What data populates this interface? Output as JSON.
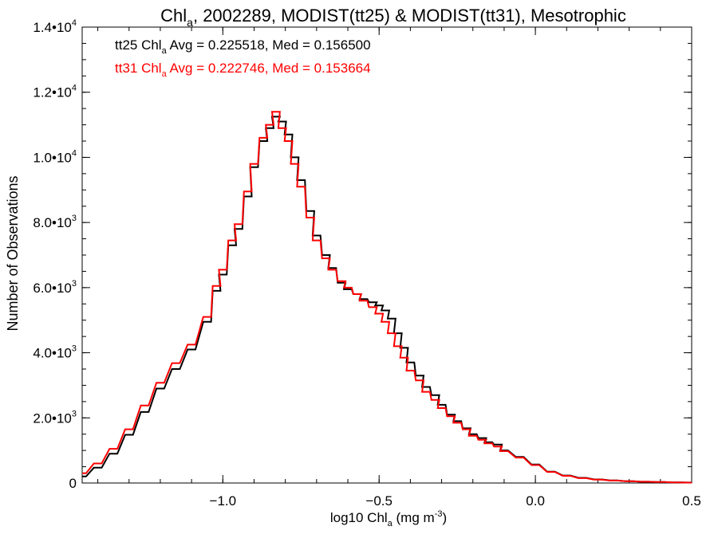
{
  "chart_data": {
    "type": "line",
    "title": {
      "pre": "Chl",
      "sub": "a",
      "post": ", 2002289, MODIST(tt25) & MODIST(tt31), Mesotrophic"
    },
    "xlabel": {
      "pre": "log10 Chl",
      "sub": "a",
      "post": " (mg m",
      "sup": "-3",
      "end": ")"
    },
    "ylabel": "Number of Observations",
    "xlim": [
      -1.45,
      0.5
    ],
    "ylim": [
      0,
      14000
    ],
    "x_ticks": [
      {
        "value": -1.0,
        "label": "−1.0"
      },
      {
        "value": -0.5,
        "label": "−0.5"
      },
      {
        "value": 0.0,
        "label": "0.0"
      },
      {
        "value": 0.5,
        "label": "0.5"
      }
    ],
    "y_ticks": [
      {
        "value": 0,
        "mant": "0",
        "exp": ""
      },
      {
        "value": 2000,
        "mant": "2.0•10",
        "exp": "3"
      },
      {
        "value": 4000,
        "mant": "4.0•10",
        "exp": "3"
      },
      {
        "value": 6000,
        "mant": "6.0•10",
        "exp": "3"
      },
      {
        "value": 8000,
        "mant": "8.0•10",
        "exp": "3"
      },
      {
        "value": 10000,
        "mant": "1.0•10",
        "exp": "4"
      },
      {
        "value": 12000,
        "mant": "1.2•10",
        "exp": "4"
      },
      {
        "value": 14000,
        "mant": "1.4•10",
        "exp": "4"
      }
    ],
    "legend": {
      "position": "top-left",
      "entries": [
        {
          "pre": "tt25 Chl",
          "sub": "a",
          "post": " Avg = 0.225518, Med = 0.156500",
          "color": "#000000"
        },
        {
          "pre": "tt31 Chl",
          "sub": "a",
          "post": " Avg = 0.222746, Med = 0.153664",
          "color": "#ff0000"
        }
      ]
    },
    "series": [
      {
        "color": "#000000",
        "step": "histogram",
        "points": [
          [
            -1.45,
            200
          ],
          [
            -1.4,
            470
          ],
          [
            -1.35,
            900
          ],
          [
            -1.3,
            1480
          ],
          [
            -1.25,
            2180
          ],
          [
            -1.2,
            2900
          ],
          [
            -1.15,
            3500
          ],
          [
            -1.1,
            4100
          ],
          [
            -1.05,
            4950
          ],
          [
            -1.02,
            5900
          ],
          [
            -1.0,
            6400
          ],
          [
            -0.97,
            7300
          ],
          [
            -0.95,
            7800
          ],
          [
            -0.92,
            8800
          ],
          [
            -0.9,
            9700
          ],
          [
            -0.87,
            10500
          ],
          [
            -0.85,
            10900
          ],
          [
            -0.83,
            11250
          ],
          [
            -0.81,
            11100
          ],
          [
            -0.79,
            10700
          ],
          [
            -0.77,
            10000
          ],
          [
            -0.75,
            9300
          ],
          [
            -0.72,
            8350
          ],
          [
            -0.7,
            7600
          ],
          [
            -0.67,
            7000
          ],
          [
            -0.65,
            6600
          ],
          [
            -0.62,
            6150
          ],
          [
            -0.6,
            5950
          ],
          [
            -0.57,
            5800
          ],
          [
            -0.55,
            5650
          ],
          [
            -0.52,
            5550
          ],
          [
            -0.5,
            5450
          ],
          [
            -0.48,
            5300
          ],
          [
            -0.46,
            5050
          ],
          [
            -0.44,
            4600
          ],
          [
            -0.42,
            4150
          ],
          [
            -0.4,
            3700
          ],
          [
            -0.37,
            3300
          ],
          [
            -0.35,
            2950
          ],
          [
            -0.32,
            2700
          ],
          [
            -0.3,
            2400
          ],
          [
            -0.27,
            2100
          ],
          [
            -0.25,
            1900
          ],
          [
            -0.22,
            1680
          ],
          [
            -0.2,
            1500
          ],
          [
            -0.17,
            1380
          ],
          [
            -0.15,
            1250
          ],
          [
            -0.12,
            1180
          ],
          [
            -0.1,
            1000
          ],
          [
            -0.05,
            800
          ],
          [
            0.0,
            570
          ],
          [
            0.05,
            350
          ],
          [
            0.1,
            230
          ],
          [
            0.15,
            160
          ],
          [
            0.2,
            110
          ],
          [
            0.25,
            80
          ],
          [
            0.3,
            55
          ],
          [
            0.35,
            40
          ],
          [
            0.4,
            30
          ],
          [
            0.45,
            20
          ],
          [
            0.5,
            15
          ]
        ]
      },
      {
        "color": "#ff0000",
        "step": "histogram",
        "points": [
          [
            -1.45,
            300
          ],
          [
            -1.4,
            600
          ],
          [
            -1.35,
            1050
          ],
          [
            -1.3,
            1650
          ],
          [
            -1.25,
            2380
          ],
          [
            -1.2,
            3080
          ],
          [
            -1.15,
            3680
          ],
          [
            -1.1,
            4250
          ],
          [
            -1.05,
            5100
          ],
          [
            -1.02,
            6050
          ],
          [
            -1.0,
            6550
          ],
          [
            -0.97,
            7450
          ],
          [
            -0.95,
            7950
          ],
          [
            -0.92,
            8950
          ],
          [
            -0.9,
            9800
          ],
          [
            -0.87,
            10600
          ],
          [
            -0.85,
            11000
          ],
          [
            -0.83,
            11400
          ],
          [
            -0.81,
            10900
          ],
          [
            -0.79,
            10500
          ],
          [
            -0.77,
            9800
          ],
          [
            -0.75,
            9100
          ],
          [
            -0.72,
            8150
          ],
          [
            -0.7,
            7450
          ],
          [
            -0.67,
            6900
          ],
          [
            -0.65,
            6550
          ],
          [
            -0.62,
            6200
          ],
          [
            -0.6,
            6000
          ],
          [
            -0.57,
            5800
          ],
          [
            -0.55,
            5600
          ],
          [
            -0.52,
            5400
          ],
          [
            -0.5,
            5200
          ],
          [
            -0.48,
            4950
          ],
          [
            -0.46,
            4600
          ],
          [
            -0.44,
            4200
          ],
          [
            -0.42,
            3850
          ],
          [
            -0.4,
            3450
          ],
          [
            -0.37,
            3150
          ],
          [
            -0.35,
            2800
          ],
          [
            -0.32,
            2550
          ],
          [
            -0.3,
            2300
          ],
          [
            -0.27,
            2050
          ],
          [
            -0.25,
            1850
          ],
          [
            -0.22,
            1650
          ],
          [
            -0.2,
            1450
          ],
          [
            -0.17,
            1330
          ],
          [
            -0.15,
            1220
          ],
          [
            -0.12,
            1120
          ],
          [
            -0.1,
            980
          ],
          [
            -0.05,
            780
          ],
          [
            0.0,
            550
          ],
          [
            0.05,
            340
          ],
          [
            0.1,
            220
          ],
          [
            0.15,
            150
          ],
          [
            0.2,
            105
          ],
          [
            0.25,
            75
          ],
          [
            0.3,
            55
          ],
          [
            0.35,
            40
          ],
          [
            0.4,
            30
          ],
          [
            0.45,
            20
          ],
          [
            0.5,
            12
          ]
        ]
      }
    ]
  }
}
